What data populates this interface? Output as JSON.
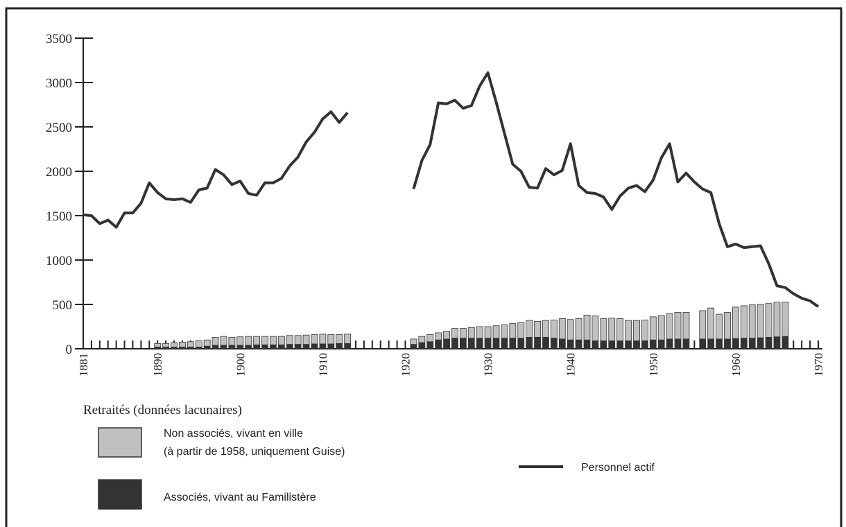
{
  "chart_data": {
    "type": "line-bar",
    "x": [
      1881,
      1882,
      1883,
      1884,
      1885,
      1886,
      1887,
      1888,
      1889,
      1890,
      1891,
      1892,
      1893,
      1894,
      1895,
      1896,
      1897,
      1898,
      1899,
      1900,
      1901,
      1902,
      1903,
      1904,
      1905,
      1906,
      1907,
      1908,
      1909,
      1910,
      1911,
      1912,
      1913,
      1914,
      1915,
      1916,
      1917,
      1918,
      1919,
      1920,
      1921,
      1922,
      1923,
      1924,
      1925,
      1926,
      1927,
      1928,
      1929,
      1930,
      1931,
      1932,
      1933,
      1934,
      1935,
      1936,
      1937,
      1938,
      1939,
      1940,
      1941,
      1942,
      1943,
      1944,
      1945,
      1946,
      1947,
      1948,
      1949,
      1950,
      1951,
      1952,
      1953,
      1954,
      1955,
      1956,
      1957,
      1958,
      1959,
      1960,
      1961,
      1962,
      1963,
      1964,
      1965,
      1966,
      1967,
      1968,
      1969,
      1970
    ],
    "xlim": [
      1881,
      1970
    ],
    "xticks": [
      1881,
      1890,
      1900,
      1910,
      1920,
      1930,
      1940,
      1950,
      1960,
      1970
    ],
    "ylim": [
      0,
      3500
    ],
    "yticks": [
      0,
      500,
      1000,
      1500,
      2000,
      2500,
      3000,
      3500
    ],
    "legend_title": "Retraités (données lacunaires)",
    "legend_note": "(à partir de 1958, uniquement Guise)",
    "series": [
      {
        "name": "Associés, vivant au Familistère",
        "kind": "bar",
        "color": "#333333",
        "values": [
          null,
          null,
          null,
          null,
          null,
          null,
          null,
          null,
          null,
          20,
          20,
          20,
          20,
          20,
          20,
          30,
          40,
          40,
          40,
          40,
          40,
          45,
          45,
          45,
          45,
          50,
          50,
          50,
          55,
          55,
          55,
          60,
          60,
          null,
          null,
          null,
          null,
          null,
          null,
          null,
          50,
          70,
          80,
          100,
          110,
          120,
          120,
          120,
          120,
          120,
          120,
          120,
          120,
          120,
          130,
          130,
          130,
          120,
          110,
          100,
          100,
          100,
          90,
          90,
          90,
          90,
          90,
          90,
          90,
          100,
          100,
          110,
          110,
          110,
          null,
          110,
          110,
          110,
          110,
          115,
          120,
          120,
          125,
          130,
          135,
          140,
          null,
          null,
          null,
          null
        ]
      },
      {
        "name": "Non associés, vivant en ville",
        "kind": "bar",
        "color": "#c0c0c0",
        "values": [
          null,
          null,
          null,
          null,
          null,
          null,
          null,
          null,
          null,
          40,
          40,
          50,
          55,
          60,
          70,
          70,
          90,
          100,
          90,
          95,
          100,
          95,
          95,
          95,
          95,
          100,
          100,
          105,
          105,
          110,
          105,
          100,
          105,
          null,
          null,
          null,
          null,
          null,
          null,
          null,
          60,
          70,
          80,
          80,
          90,
          110,
          110,
          120,
          130,
          130,
          140,
          150,
          165,
          175,
          190,
          180,
          190,
          205,
          230,
          230,
          240,
          280,
          280,
          250,
          255,
          250,
          230,
          230,
          235,
          260,
          275,
          285,
          300,
          300,
          null,
          320,
          350,
          280,
          300,
          355,
          365,
          375,
          375,
          380,
          390,
          385,
          null,
          null,
          null,
          null
        ]
      },
      {
        "name": "Personnel actif",
        "kind": "line",
        "color": "#333333",
        "values": [
          1510,
          1500,
          1410,
          1450,
          1370,
          1530,
          1530,
          1640,
          1870,
          1760,
          1690,
          1680,
          1690,
          1650,
          1790,
          1810,
          2020,
          1960,
          1850,
          1890,
          1750,
          1730,
          1870,
          1870,
          1920,
          2060,
          2160,
          2330,
          2440,
          2590,
          2670,
          2550,
          2660,
          null,
          null,
          null,
          null,
          null,
          null,
          null,
          1800,
          2120,
          2300,
          2770,
          2760,
          2800,
          2710,
          2740,
          2960,
          3110,
          2780,
          2430,
          2080,
          2000,
          1820,
          1810,
          2030,
          1960,
          2010,
          2310,
          1840,
          1760,
          1750,
          1710,
          1570,
          1720,
          1810,
          1840,
          1770,
          1900,
          2150,
          2310,
          1880,
          1980,
          1880,
          1800,
          1760,
          1410,
          1150,
          1180,
          1140,
          1150,
          1160,
          960,
          710,
          690,
          620,
          570,
          540,
          475
        ]
      }
    ]
  }
}
